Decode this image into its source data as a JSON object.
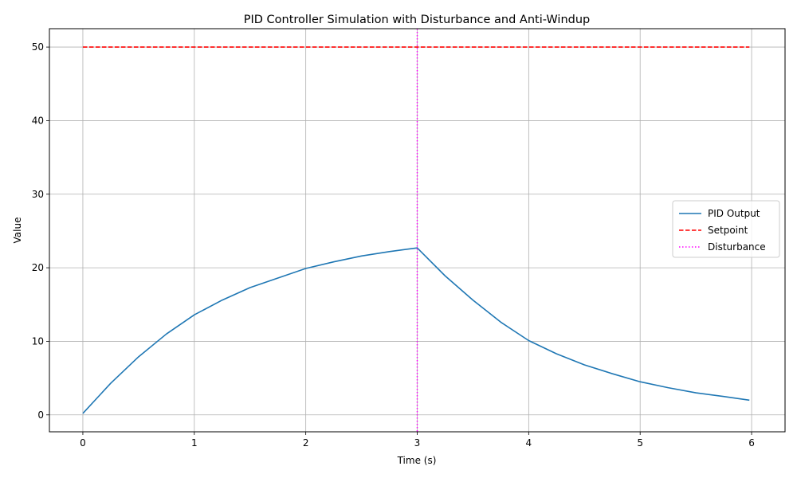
{
  "chart_data": {
    "type": "line",
    "title": "PID Controller Simulation with Disturbance and Anti-Windup",
    "xlabel": "Time (s)",
    "ylabel": "Value",
    "xlim": [
      -0.3,
      6.3
    ],
    "ylim": [
      -2.3,
      52.5
    ],
    "xticks": [
      0,
      1,
      2,
      3,
      4,
      5,
      6
    ],
    "yticks": [
      0,
      10,
      20,
      30,
      40,
      50
    ],
    "grid": true,
    "legend_position": "center-right",
    "series": [
      {
        "name": "PID Output",
        "style": "solid",
        "color": "#1f77b4",
        "x": [
          0,
          0.25,
          0.5,
          0.75,
          1.0,
          1.25,
          1.5,
          1.75,
          2.0,
          2.25,
          2.5,
          2.75,
          3.0,
          3.25,
          3.5,
          3.75,
          4.0,
          4.25,
          4.5,
          4.75,
          5.0,
          5.25,
          5.5,
          5.75,
          5.98
        ],
        "y": [
          0.2,
          4.3,
          7.9,
          11.0,
          13.6,
          15.6,
          17.3,
          18.6,
          19.9,
          20.8,
          21.6,
          22.2,
          22.7,
          18.9,
          15.6,
          12.6,
          10.1,
          8.3,
          6.8,
          5.6,
          4.5,
          3.7,
          3.0,
          2.5,
          2.0
        ]
      },
      {
        "name": "Setpoint",
        "style": "dashed",
        "color": "#ff0000",
        "x": [
          0,
          5.98
        ],
        "y": [
          50,
          50
        ]
      }
    ],
    "vlines": [
      {
        "name": "Disturbance",
        "style": "dotted",
        "color": "#ff00ff",
        "x": 3.0
      }
    ]
  }
}
